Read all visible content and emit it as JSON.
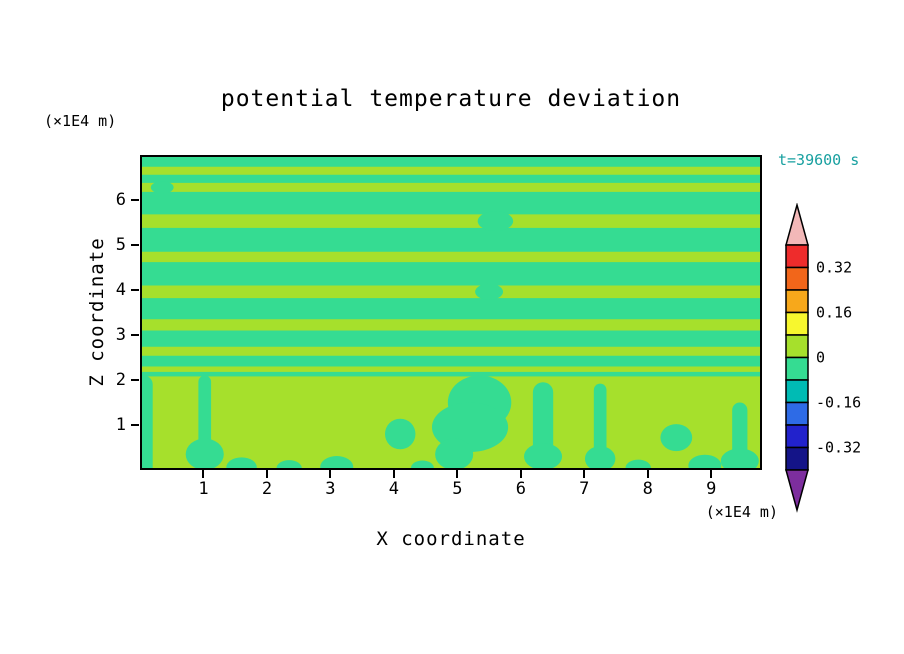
{
  "title": "potential temperature deviation",
  "time_label": "t=39600 s",
  "colors": {
    "background": "#FFFFFF",
    "frame": "#000000",
    "time_label": "#18A0A0"
  },
  "axes": {
    "x_label": "X coordinate",
    "z_label": "Z coordinate",
    "x_unit": "(×1E4 m)",
    "z_unit": "(×1E4 m)",
    "x_ticks": [
      "1",
      "2",
      "3",
      "4",
      "5",
      "6",
      "7",
      "8",
      "9"
    ],
    "z_ticks": [
      "1",
      "2",
      "3",
      "4",
      "5",
      "6"
    ]
  },
  "colorbar": {
    "labels": [
      "0.32",
      "0.16",
      "0",
      "-0.16",
      "-0.32"
    ],
    "tick_values": [
      0.32,
      0.16,
      0,
      -0.16,
      -0.32
    ],
    "arrow_top_color": "#F2B8B8",
    "arrow_bottom_color": "#7D2E9E",
    "segment_colors_top_to_bottom": [
      "#EE2C2C",
      "#F2661A",
      "#F7A81B",
      "#F7F72E",
      "#A6E02C",
      "#35DC92",
      "#00BBB4",
      "#2E6BE6",
      "#2222CC",
      "#141488"
    ]
  },
  "chart_data": {
    "type": "heatmap",
    "title": "potential temperature deviation",
    "xlabel": "X coordinate",
    "ylabel": "Z coordinate",
    "x_unit": "(×1E4 m)",
    "z_unit": "(×1E4 m)",
    "time": "t=39600 s",
    "xlim": [
      0,
      9.8
    ],
    "zlim": [
      0,
      7
    ],
    "x_ticks": [
      "1",
      "2",
      "3",
      "4",
      "5",
      "6",
      "7",
      "8",
      "9"
    ],
    "z_ticks": [
      "1",
      "2",
      "3",
      "4",
      "5",
      "6"
    ],
    "contour_levels": [
      -0.4,
      -0.32,
      -0.24,
      -0.16,
      -0.08,
      0,
      0.08,
      0.16,
      0.24,
      0.32,
      0.4
    ],
    "value_range_shown": [
      -0.08,
      0.08
    ],
    "field_colors": {
      "positive_band": "#A6E02C",
      "negative_band": "#35DC92"
    },
    "mixed_layer": {
      "z_top": 2.08
    },
    "positive_stripes": [
      [
        6.56,
        6.74
      ],
      [
        6.18,
        6.38
      ],
      [
        5.38,
        5.68
      ],
      [
        4.62,
        4.85
      ],
      [
        3.82,
        4.1
      ],
      [
        3.1,
        3.35
      ],
      [
        2.54,
        2.74
      ],
      [
        2.18,
        2.3
      ]
    ],
    "stripe_gaps": [
      {
        "x": 5.6,
        "z": 5.53,
        "rx": 0.28,
        "ry": 0.22
      },
      {
        "x": 5.5,
        "z": 3.96,
        "rx": 0.22,
        "ry": 0.18
      },
      {
        "x": 0.35,
        "z": 6.28,
        "rx": 0.18,
        "ry": 0.14
      }
    ],
    "negative_features": [
      {
        "type": "column",
        "x": 0.06,
        "half_w": 0.14,
        "z0": -0.2,
        "z1": 2.1
      },
      {
        "type": "column",
        "x": 1.02,
        "half_w": 0.1,
        "z0": 0.45,
        "z1": 2.1
      },
      {
        "type": "ellipse",
        "x": 1.02,
        "z": 0.35,
        "rx": 0.3,
        "ry": 0.35
      },
      {
        "type": "ellipse",
        "x": 1.6,
        "z": 0.06,
        "rx": 0.24,
        "ry": 0.22
      },
      {
        "type": "ellipse",
        "x": 2.35,
        "z": 0.04,
        "rx": 0.2,
        "ry": 0.18
      },
      {
        "type": "ellipse",
        "x": 3.1,
        "z": 0.07,
        "rx": 0.26,
        "ry": 0.24
      },
      {
        "type": "ellipse",
        "x": 4.1,
        "z": 0.8,
        "rx": 0.24,
        "ry": 0.34
      },
      {
        "type": "ellipse",
        "x": 4.45,
        "z": 0.05,
        "rx": 0.18,
        "ry": 0.16
      },
      {
        "type": "column",
        "x": 5.35,
        "half_w": 0.5,
        "z0": 0.9,
        "z1": 2.1
      },
      {
        "type": "ellipse",
        "x": 5.2,
        "z": 0.95,
        "rx": 0.6,
        "ry": 0.55
      },
      {
        "type": "ellipse",
        "x": 4.95,
        "z": 0.35,
        "rx": 0.3,
        "ry": 0.35
      },
      {
        "type": "column",
        "x": 6.35,
        "half_w": 0.16,
        "z0": 0.35,
        "z1": 1.95
      },
      {
        "type": "ellipse",
        "x": 6.35,
        "z": 0.3,
        "rx": 0.3,
        "ry": 0.3
      },
      {
        "type": "column",
        "x": 7.25,
        "half_w": 0.1,
        "z0": 0.3,
        "z1": 1.92
      },
      {
        "type": "ellipse",
        "x": 7.25,
        "z": 0.25,
        "rx": 0.24,
        "ry": 0.28
      },
      {
        "type": "ellipse",
        "x": 7.85,
        "z": 0.05,
        "rx": 0.2,
        "ry": 0.18
      },
      {
        "type": "ellipse",
        "x": 8.45,
        "z": 0.72,
        "rx": 0.25,
        "ry": 0.3
      },
      {
        "type": "ellipse",
        "x": 8.9,
        "z": 0.1,
        "rx": 0.26,
        "ry": 0.24
      },
      {
        "type": "column",
        "x": 9.45,
        "half_w": 0.12,
        "z0": 0.25,
        "z1": 1.5
      },
      {
        "type": "ellipse",
        "x": 9.45,
        "z": 0.2,
        "rx": 0.3,
        "ry": 0.28
      }
    ]
  }
}
